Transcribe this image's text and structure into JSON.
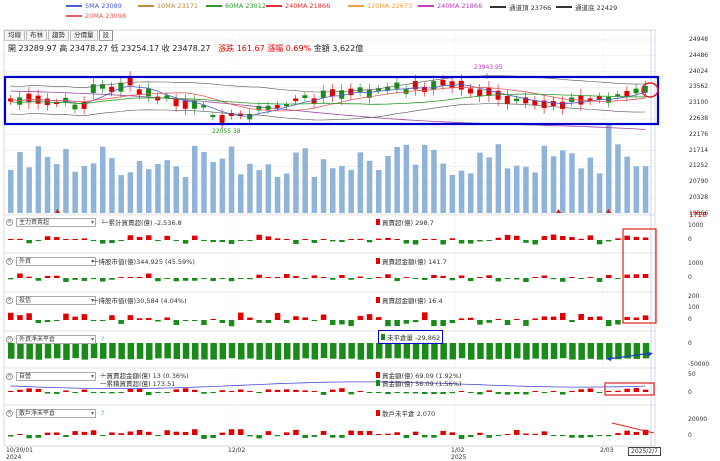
{
  "legend": [
    {
      "label": "5MA 23089",
      "color": "#4a5cc7"
    },
    {
      "label": "10MA 23171",
      "color": "#c7883f"
    },
    {
      "label": "60MA 23012",
      "color": "#2e9a2e"
    },
    {
      "label": "240MA 21866",
      "color": "#e03030"
    },
    {
      "label": "120MA 22673",
      "color": "#f0a040"
    },
    {
      "label": "240MA 21866",
      "color": "#c040c0"
    },
    {
      "label": "通道頂 23766",
      "color": "#333333"
    },
    {
      "label": "通道底 22429",
      "color": "#333333"
    },
    {
      "label": "20MA 23098",
      "color": "#e06060"
    }
  ],
  "tabs": [
    "均線",
    "布林",
    "趨勢",
    "分價量",
    "設"
  ],
  "quote": {
    "open": "開 23289.97",
    "high": "高 23478.27",
    "low": "低 23254.17",
    "close": "收 23478.27",
    "change": "漲跌 161.67",
    "pct": "漲幅 0.69%",
    "amount": "金額 3,622億"
  },
  "price_axis": [
    "24948",
    "24486",
    "24024",
    "23562",
    "23100",
    "22638",
    "22176",
    "21714",
    "21252",
    "20790",
    "20328",
    "19866"
  ],
  "annotations": {
    "high": "23943.95",
    "low": "22055.38",
    "vol_max": "1728"
  },
  "panels": {
    "main_force": {
      "name": "主力買賣超",
      "info1": "一累計買賣超(億) -2,536.8",
      "info2": "買賣超(億) 298.7",
      "axis": [
        "1000",
        "0"
      ]
    },
    "foreign": {
      "name": "外資",
      "info1": "一持股市值(億)344,925 (45.59%)",
      "info2": "買賣超金額(億) 141.7",
      "axis": [
        "1000",
        "0"
      ]
    },
    "trust": {
      "name": "投信",
      "info1": "一持股市值(億)30,584 (4.04%)",
      "info2": "買賣超金額(億) 16.4",
      "axis": [
        "200",
        "100",
        "0"
      ]
    },
    "foreign_unhedged": {
      "name": "外資淨未平倉",
      "info2": "未平倉量 -29,862",
      "axis": [
        "0",
        "-50000"
      ]
    },
    "dealer": {
      "name": "自營",
      "info1a": "一買賣超金額(億) 13 (0.36%)",
      "info1b": "一累積買賣超(億) 173.51",
      "info2a": "買金額(億) 69.09 (1.92%)",
      "info2b": "賣金額(億) 56.09 (1.56%)",
      "axis": [
        "50",
        "0"
      ]
    },
    "retail": {
      "name": "散戶淨未平倉",
      "info2": "散戶未平倉 2,070",
      "axis": [
        "20000",
        "0"
      ]
    }
  },
  "x_labels": [
    {
      "label": "10/30/01",
      "sub": "2024"
    },
    {
      "label": "12/02",
      "sub": ""
    },
    {
      "label": "1/02",
      "sub": "2025"
    },
    {
      "label": "2/03",
      "sub": ""
    }
  ],
  "cursor_date": "2025/2/7",
  "colors": {
    "up": "#e00000",
    "down": "#1a8a1a",
    "volume": "#8fb3d9",
    "highlight_blue": "#0000cc",
    "highlight_red": "#e02020"
  }
}
